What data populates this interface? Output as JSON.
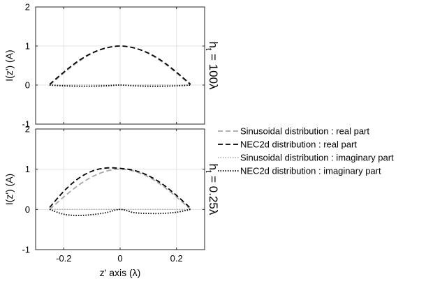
{
  "chart_data": [
    {
      "type": "line",
      "panel": "top",
      "side_label": "h",
      "side_label_sub": "t",
      "side_label_rest": " = 100λ",
      "ylabel": "I(z') (A)",
      "xlabel": "",
      "xlim": [
        -0.3,
        0.3
      ],
      "ylim": [
        -1,
        2
      ],
      "xticks": [
        -0.2,
        0,
        0.2
      ],
      "yticks": [
        -1,
        0,
        1,
        2
      ],
      "xtick_labels_shown": false,
      "grid": true,
      "series": [
        {
          "name": "Sinusoidal distribution : real part",
          "style": "gray-dashed",
          "x": [
            -0.25,
            -0.2,
            -0.15,
            -0.1,
            -0.05,
            0,
            0.05,
            0.1,
            0.15,
            0.2,
            0.25
          ],
          "y": [
            0,
            0.31,
            0.59,
            0.81,
            0.95,
            1.0,
            0.95,
            0.81,
            0.59,
            0.31,
            0
          ]
        },
        {
          "name": "NEC2d distribution : real part",
          "style": "black-dashed",
          "x": [
            -0.25,
            -0.2,
            -0.15,
            -0.1,
            -0.05,
            0,
            0.05,
            0.1,
            0.15,
            0.2,
            0.25
          ],
          "y": [
            0.02,
            0.33,
            0.61,
            0.82,
            0.95,
            1.0,
            0.95,
            0.82,
            0.61,
            0.33,
            0.02
          ]
        },
        {
          "name": "Sinusoidal distribution : imaginary part",
          "style": "gray-dotted",
          "x": [
            -0.25,
            0.25
          ],
          "y": [
            0,
            0
          ]
        },
        {
          "name": "NEC2d distribution : imaginary part",
          "style": "black-dotted",
          "x": [
            -0.25,
            -0.2,
            -0.15,
            -0.1,
            -0.05,
            0,
            0.05,
            0.1,
            0.15,
            0.2,
            0.25
          ],
          "y": [
            0,
            -0.02,
            -0.03,
            -0.03,
            -0.02,
            0,
            -0.02,
            -0.03,
            -0.03,
            -0.02,
            0
          ]
        }
      ]
    },
    {
      "type": "line",
      "panel": "bottom",
      "side_label": "h",
      "side_label_sub": "t",
      "side_label_rest": " = 0.25λ",
      "ylabel": "I(z') (A)",
      "xlabel": "z' axis (λ)",
      "xlim": [
        -0.3,
        0.3
      ],
      "ylim": [
        -1,
        2
      ],
      "xticks": [
        -0.2,
        0,
        0.2
      ],
      "xtick_labels": [
        "-0.2",
        "0",
        "0.2"
      ],
      "yticks": [
        -1,
        0,
        1,
        2
      ],
      "grid": true,
      "series": [
        {
          "name": "Sinusoidal distribution : real part",
          "style": "gray-dashed",
          "x": [
            -0.25,
            -0.2,
            -0.15,
            -0.1,
            -0.05,
            0,
            0.05,
            0.1,
            0.15,
            0.2,
            0.25
          ],
          "y": [
            0,
            0.31,
            0.59,
            0.81,
            0.95,
            1.0,
            0.95,
            0.81,
            0.59,
            0.31,
            0
          ]
        },
        {
          "name": "NEC2d distribution : real part",
          "style": "black-dashed",
          "x": [
            -0.25,
            -0.2,
            -0.15,
            -0.1,
            -0.05,
            0,
            0.05,
            0.1,
            0.15,
            0.2,
            0.25
          ],
          "y": [
            0.05,
            0.45,
            0.76,
            0.95,
            1.03,
            1.02,
            0.97,
            0.84,
            0.63,
            0.35,
            0.03
          ]
        },
        {
          "name": "Sinusoidal distribution : imaginary part",
          "style": "gray-dotted",
          "x": [
            -0.25,
            0.25
          ],
          "y": [
            0,
            0
          ]
        },
        {
          "name": "NEC2d distribution : imaginary part",
          "style": "black-dotted",
          "x": [
            -0.25,
            -0.2,
            -0.15,
            -0.1,
            -0.05,
            0,
            0.05,
            0.1,
            0.15,
            0.2,
            0.25
          ],
          "y": [
            0,
            -0.12,
            -0.15,
            -0.13,
            -0.08,
            0,
            -0.08,
            -0.1,
            -0.1,
            -0.07,
            0
          ]
        }
      ]
    }
  ],
  "legend": {
    "placement": "right",
    "entries": [
      {
        "label": "Sinusoidal distribution : real part",
        "style": "gray-dashed"
      },
      {
        "label": "NEC2d distribution : real part",
        "style": "black-dashed"
      },
      {
        "label": "Sinusoidal distribution : imaginary part",
        "style": "gray-dotted"
      },
      {
        "label": "NEC2d distribution : imaginary part",
        "style": "black-dotted"
      }
    ]
  },
  "styles": {
    "gray-dashed": {
      "color": "#a6a6a6",
      "dash": "7,4",
      "width": 1.8
    },
    "black-dashed": {
      "color": "#000000",
      "dash": "7,4",
      "width": 1.8
    },
    "gray-dotted": {
      "color": "#a6a6a6",
      "dash": "1.5,2",
      "width": 1.4
    },
    "black-dotted": {
      "color": "#000000",
      "dash": "1.5,2",
      "width": 1.8
    }
  }
}
